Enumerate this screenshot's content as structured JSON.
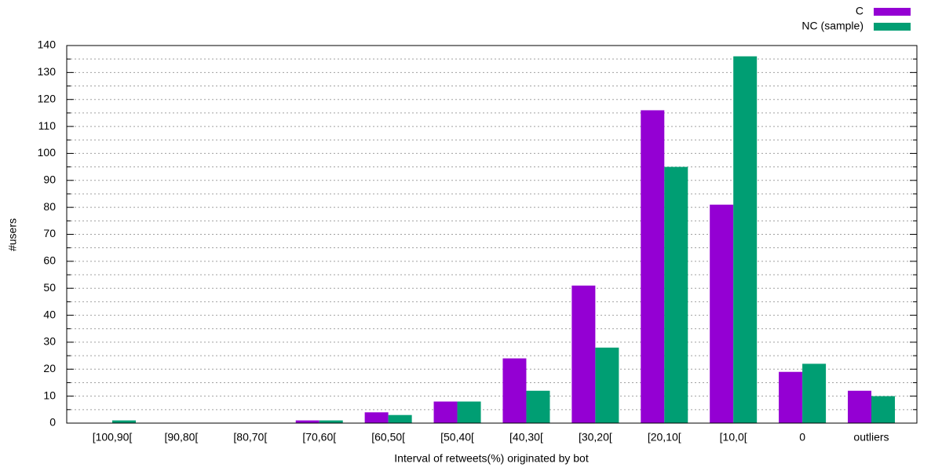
{
  "chart_data": {
    "type": "bar",
    "xlabel": "Interval of retweets(%) originated by bot",
    "ylabel": "#users",
    "categories": [
      "[100,90[",
      "[90,80[",
      "[80,70[",
      "[70,60[",
      "[60,50[",
      "[50,40[",
      "[40,30[",
      "[30,20[",
      "[20,10[",
      "[10,0[",
      "0",
      "outliers"
    ],
    "series": [
      {
        "name": "C",
        "color": "#9400d3",
        "values": [
          0,
          0,
          0,
          1,
          4,
          8,
          24,
          51,
          116,
          81,
          19,
          12
        ]
      },
      {
        "name": "NC (sample)",
        "color": "#009e73",
        "values": [
          1,
          0,
          0,
          1,
          3,
          8,
          12,
          28,
          95,
          136,
          22,
          10
        ]
      }
    ],
    "ylim": [
      0,
      140
    ],
    "yticks": [
      0,
      10,
      20,
      30,
      40,
      50,
      60,
      70,
      80,
      90,
      100,
      110,
      120,
      130,
      140
    ],
    "minor_yticks": [
      5,
      15,
      25,
      35,
      45,
      55,
      65,
      75,
      85,
      95,
      105,
      115,
      125,
      135
    ],
    "grid": true,
    "legend": "top-right"
  }
}
